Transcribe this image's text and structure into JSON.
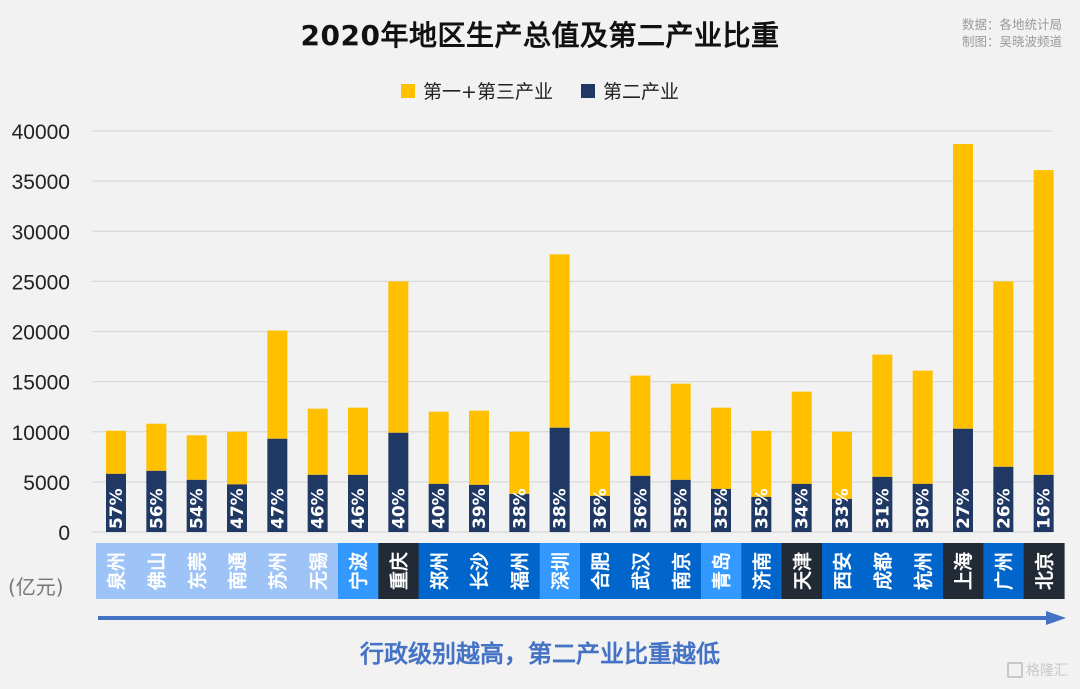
{
  "source": {
    "data_line": "数据：各地统计局",
    "maker_line": "制图：吴晓波频道"
  },
  "unit_label": "(亿元)",
  "conclusion": "行政级别越高，第二产业比重越低",
  "watermark": "格隆汇",
  "colors": {
    "primary_tertiary": "#ffc000",
    "secondary": "#203864",
    "tier_light": "#9dc3f7",
    "tier_mid": "#3399ff",
    "tier_blue": "#0066cc",
    "tier_dark": "#222a35",
    "arrow": "#4472c4"
  },
  "chart_data": {
    "type": "bar",
    "stacked": true,
    "title": "2020年地区生产总值及第二产业比重",
    "xlabel": "",
    "ylabel": "(亿元)",
    "ylim": [
      0,
      40000
    ],
    "yticks": [
      0,
      5000,
      10000,
      15000,
      20000,
      25000,
      30000,
      35000,
      40000
    ],
    "grid": true,
    "legend_position": "top-center",
    "categories": [
      "泉州",
      "佛山",
      "东莞",
      "南通",
      "苏州",
      "无锡",
      "宁波",
      "重庆",
      "郑州",
      "长沙",
      "福州",
      "深圳",
      "合肥",
      "武汉",
      "南京",
      "青岛",
      "济南",
      "天津",
      "西安",
      "成都",
      "杭州",
      "上海",
      "广州",
      "北京"
    ],
    "category_tiers": [
      "light",
      "light",
      "light",
      "light",
      "light",
      "light",
      "mid",
      "dark",
      "blue",
      "blue",
      "blue",
      "mid",
      "blue",
      "blue",
      "blue",
      "mid",
      "blue",
      "dark",
      "blue",
      "blue",
      "blue",
      "dark",
      "blue",
      "dark"
    ],
    "series": [
      {
        "name": "第二产业",
        "color": "#203864",
        "values": [
          5800,
          6100,
          5200,
          4750,
          9300,
          5700,
          5700,
          9900,
          4800,
          4700,
          3800,
          10400,
          3600,
          5600,
          5200,
          4300,
          3500,
          4800,
          3300,
          5500,
          4800,
          10300,
          6500,
          5700
        ]
      },
      {
        "name": "第一+第三产业",
        "color": "#ffc000",
        "values": [
          4300,
          4700,
          4450,
          5250,
          10800,
          6600,
          6700,
          15100,
          7200,
          7400,
          6200,
          17300,
          6400,
          10000,
          9600,
          8100,
          6600,
          9200,
          6700,
          12200,
          11300,
          28400,
          18500,
          30400
        ]
      }
    ],
    "totals": [
      10100,
      10800,
      9650,
      10000,
      20100,
      12300,
      12400,
      25000,
      12000,
      12100,
      10000,
      27700,
      10000,
      15600,
      14800,
      12400,
      10100,
      14000,
      10000,
      17700,
      16100,
      38700,
      25000,
      36100
    ],
    "data_labels": [
      "57%",
      "56%",
      "54%",
      "47%",
      "47%",
      "46%",
      "46%",
      "40%",
      "40%",
      "39%",
      "38%",
      "38%",
      "36%",
      "36%",
      "35%",
      "35%",
      "35%",
      "34%",
      "33%",
      "31%",
      "30%",
      "27%",
      "26%",
      "16%"
    ],
    "legend": [
      "第一+第三产业",
      "第二产业"
    ]
  }
}
